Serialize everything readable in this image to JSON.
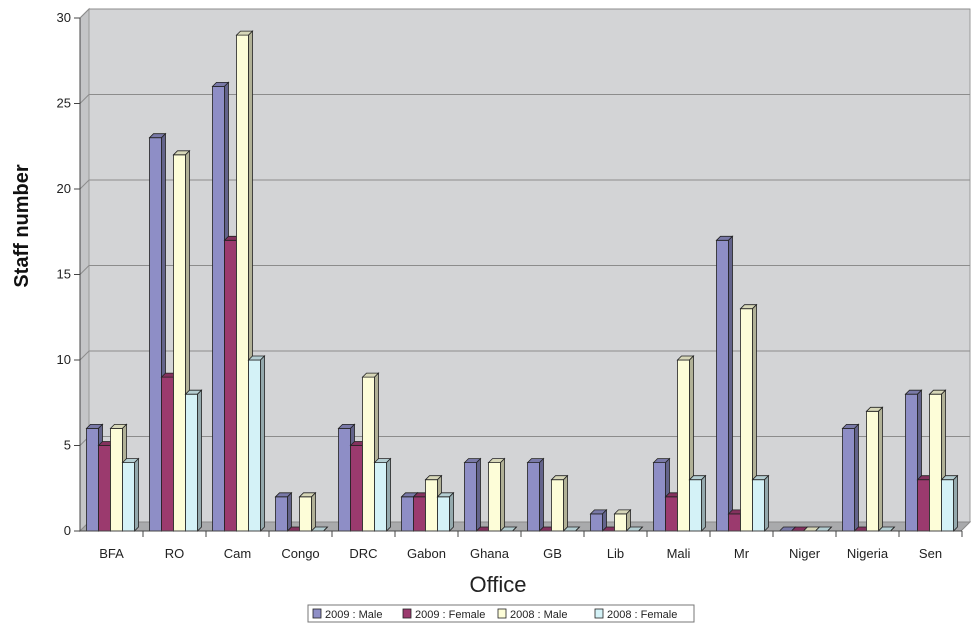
{
  "chart_data": {
    "type": "bar",
    "title": "",
    "xlabel": "Office",
    "ylabel": "Staff number",
    "categories": [
      "BFA",
      "RO",
      "Cam",
      "Congo",
      "DRC",
      "Gabon",
      "Ghana",
      "GB",
      "Lib",
      "Mali",
      "Mr",
      "Niger",
      "Nigeria",
      "Sen"
    ],
    "series": [
      {
        "name": "2009 : Male",
        "color": "#8e8ec6",
        "values": [
          6,
          23,
          26,
          2,
          6,
          2,
          4,
          4,
          1,
          4,
          17,
          0,
          6,
          8
        ]
      },
      {
        "name": "2009 : Female",
        "color": "#9b3a6e",
        "values": [
          5,
          9,
          17,
          0,
          5,
          2,
          0,
          0,
          0,
          2,
          1,
          0,
          0,
          3
        ]
      },
      {
        "name": "2008 : Male",
        "color": "#fdfdd8",
        "values": [
          6,
          22,
          29,
          2,
          9,
          3,
          4,
          3,
          1,
          10,
          13,
          0,
          7,
          8
        ]
      },
      {
        "name": "2008 : Female",
        "color": "#d4f2f7",
        "values": [
          4,
          8,
          10,
          0,
          4,
          2,
          0,
          0,
          0,
          3,
          3,
          0,
          0,
          3
        ]
      }
    ],
    "ylim": [
      0,
      30
    ],
    "yticks": [
      0,
      5,
      10,
      15,
      20,
      25,
      30
    ],
    "grid": true,
    "legend_position": "bottom",
    "style": "3d-bar",
    "background_color": "#d3d4d6"
  }
}
